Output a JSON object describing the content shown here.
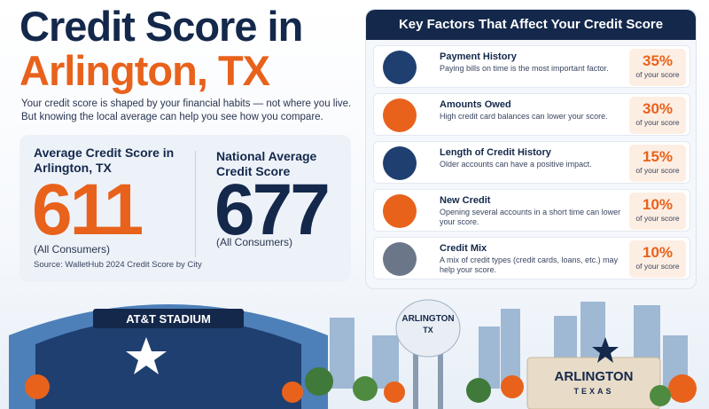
{
  "header": {
    "title_line1": "Credit Score in",
    "title_line2": "Arlington, TX",
    "intro": [
      "Your credit score is shaped by your financial habits — not where you live.",
      "But knowing the local average can help you see how you compare."
    ]
  },
  "scores": {
    "local": {
      "label": "Average Credit Score in Arlington, TX",
      "value": "611",
      "note": "(All Consumers)"
    },
    "national": {
      "label": "National Average Credit Score",
      "value": "677",
      "note": "(All Consumers)"
    },
    "source": "Source: WalletHub 2024 Credit Score by City"
  },
  "factors": {
    "title": "Key Factors That Affect Your Credit Score",
    "items": [
      {
        "name": "Payment History",
        "description": "Paying bills on time is the most important factor.",
        "percent": "35%",
        "unit": "of your score"
      },
      {
        "name": "Amounts Owed",
        "description": "High credit card balances can lower your score.",
        "percent": "30%",
        "unit": "of your score"
      },
      {
        "name": "Length of Credit History",
        "description": "Older accounts can have a positive impact.",
        "percent": "15%",
        "unit": "of your score"
      },
      {
        "name": "New Credit",
        "description": "Opening several accounts in a short time can lower your score.",
        "percent": "10%",
        "unit": "of your score"
      },
      {
        "name": "Credit Mix",
        "description": "A mix of credit types (credit cards, loans, etc.) may help your score.",
        "percent": "10%",
        "unit": "of your score"
      }
    ]
  },
  "illustration": {
    "stadium_sign": "AT&T STADIUM",
    "tower_line1": "ARLINGTON",
    "tower_line2": "TX",
    "sign_line1": "ARLINGTON",
    "sign_line2": "TEXAS"
  }
}
